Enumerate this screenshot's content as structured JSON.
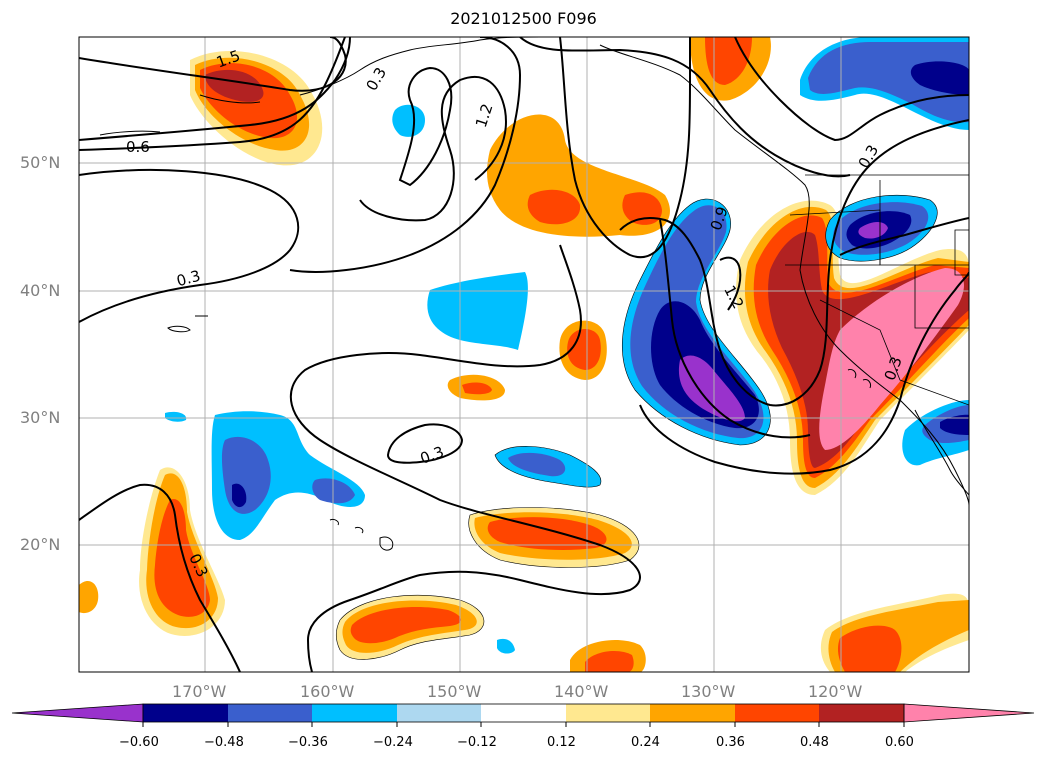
{
  "title": "2021012500 F096",
  "lat_labels": [
    "50°N",
    "40°N",
    "30°N",
    "20°N"
  ],
  "lon_labels": [
    "170°W",
    "160°W",
    "150°W",
    "140°W",
    "130°W",
    "120°W"
  ],
  "contour_labels": [
    "1.5",
    "0.6",
    "0.3",
    "1.2",
    "0.9",
    "0.3",
    "0.3",
    "0.3",
    "1.2",
    "0.3",
    "0.3"
  ],
  "colorbar": {
    "colors": [
      "#9932cc",
      "#00008b",
      "#3a5fcd",
      "#00bfff",
      "#add8f0",
      "#ffffff",
      "#ffe890",
      "#ffa500",
      "#ff4500",
      "#b22222",
      "#ff82ab"
    ],
    "labels": [
      "−0.60",
      "−0.48",
      "−0.36",
      "−0.24",
      "−0.12",
      "0.12",
      "0.24",
      "0.36",
      "0.48",
      "0.60"
    ]
  },
  "chart_data": {
    "type": "map",
    "title": "2021012500 F096",
    "lon_range": [
      -180,
      -110
    ],
    "lat_range": [
      10,
      60
    ],
    "grid": true,
    "contour_levels_shown": [
      0.3,
      0.6,
      0.9,
      1.2,
      1.5
    ],
    "colorbar_levels": [
      -0.6,
      -0.48,
      -0.36,
      -0.24,
      -0.12,
      0.12,
      0.24,
      0.36,
      0.48,
      0.6
    ]
  }
}
